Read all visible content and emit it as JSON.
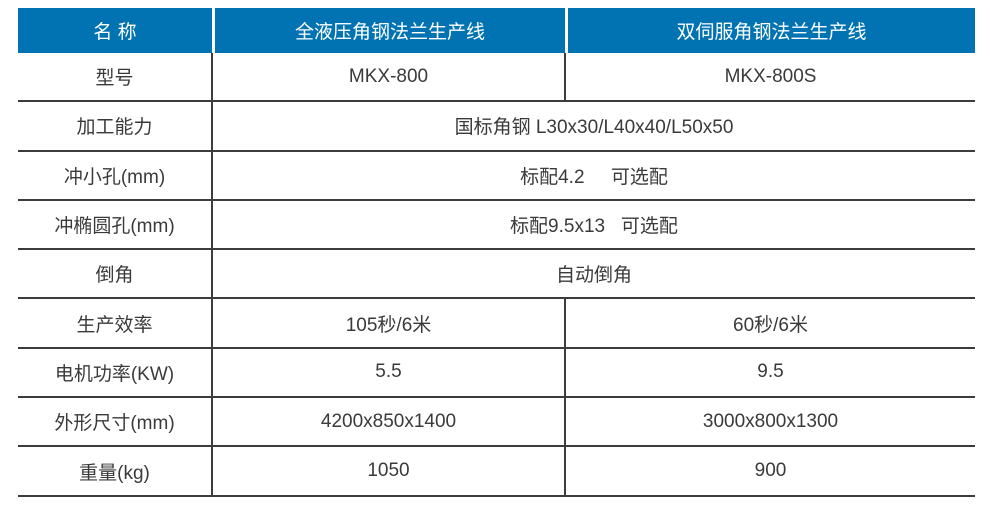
{
  "colors": {
    "header_bg": "#0173b3",
    "header_text": "#ffffff",
    "body_text": "#3a3a3a",
    "border": "#3c3c3c"
  },
  "table": {
    "header": {
      "name_label": "名 称",
      "product1": "全液压角钢法兰生产线",
      "product2": "双伺服角钢法兰生产线"
    },
    "rows": [
      {
        "label": "型号",
        "type": "split",
        "col1": "MKX-800",
        "col2": "MKX-800S"
      },
      {
        "label": "加工能力",
        "type": "merged",
        "value": "国标角钢 L30x30/L40x40/L50x50"
      },
      {
        "label": "冲小孔(mm)",
        "type": "merged",
        "value": "标配4.2     可选配"
      },
      {
        "label": "冲椭圆孔(mm)",
        "type": "merged",
        "value": "标配9.5x13   可选配"
      },
      {
        "label": "倒角",
        "type": "merged",
        "value": "自动倒角"
      },
      {
        "label": "生产效率",
        "type": "split",
        "col1": "105秒/6米",
        "col2": "60秒/6米"
      },
      {
        "label": "电机功率(KW)",
        "type": "split",
        "col1": "5.5",
        "col2": "9.5"
      },
      {
        "label": "外形尺寸(mm)",
        "type": "split",
        "col1": "4200x850x1400",
        "col2": "3000x800x1300"
      },
      {
        "label": "重量(kg)",
        "type": "split",
        "col1": "1050",
        "col2": "900"
      }
    ]
  }
}
